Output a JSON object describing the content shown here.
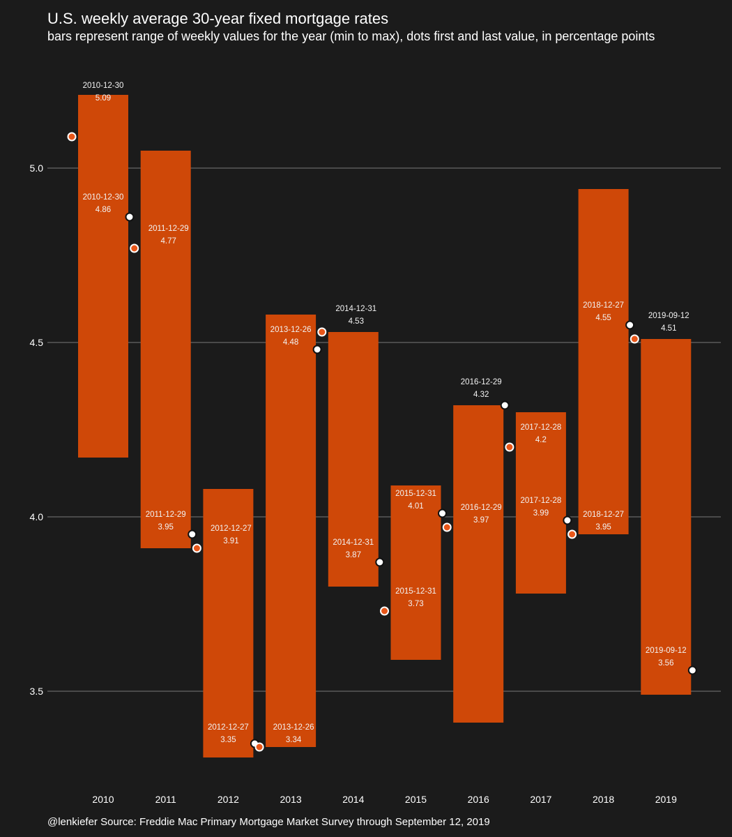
{
  "header": {
    "title": "U.S. weekly average 30-year fixed mortgage rates",
    "subtitle": "bars represent range of weekly values for the year (min to max), dots first and last value, in percentage points"
  },
  "footer": {
    "caption": "@lenkiefer Source: Freddie Mac Primary Mortgage Market Survey through September 12, 2019"
  },
  "colors": {
    "background": "#1b1b1b",
    "bar": "#cf4808",
    "first_dot": "#e8571a",
    "last_dot": "#ffffff",
    "grid": "#5a5a5a",
    "text": "#ffffff"
  },
  "chart_data": {
    "type": "bar",
    "grid": true,
    "ylim": [
      3.2,
      5.4
    ],
    "yticks": [
      "3.5",
      "4.0",
      "4.5",
      "5.0"
    ],
    "categories": [
      "2010",
      "2011",
      "2012",
      "2013",
      "2014",
      "2015",
      "2016",
      "2017",
      "2018",
      "2019"
    ],
    "range_min": [
      4.17,
      3.91,
      3.31,
      3.34,
      3.8,
      3.59,
      3.41,
      3.78,
      3.95,
      3.49
    ],
    "range_max": [
      5.21,
      5.05,
      4.08,
      4.58,
      4.53,
      4.09,
      4.32,
      4.3,
      4.94,
      4.51
    ],
    "first_value": [
      5.09,
      4.77,
      3.91,
      3.34,
      4.53,
      3.73,
      3.97,
      4.2,
      3.95,
      4.51
    ],
    "last_value": [
      4.86,
      3.95,
      3.35,
      4.48,
      3.87,
      4.01,
      4.32,
      3.99,
      4.55,
      3.56
    ],
    "labels": [
      {
        "date": "2010-12-30",
        "value": "5.09"
      },
      {
        "date": "2010-12-30",
        "value": "4.86"
      },
      {
        "date": "2011-12-29",
        "value": "4.77"
      },
      {
        "date": "2011-12-29",
        "value": "3.95"
      },
      {
        "date": "2012-12-27",
        "value": "3.91"
      },
      {
        "date": "2012-12-27",
        "value": "3.35"
      },
      {
        "date": "2013-12-26",
        "value": "4.48"
      },
      {
        "date": "2013-12-26",
        "value": "3.34"
      },
      {
        "date": "2014-12-31",
        "value": "4.53"
      },
      {
        "date": "2014-12-31",
        "value": "3.87"
      },
      {
        "date": "2015-12-31",
        "value": "4.01"
      },
      {
        "date": "2015-12-31",
        "value": "3.73"
      },
      {
        "date": "2016-12-29",
        "value": "4.32"
      },
      {
        "date": "2016-12-29",
        "value": "3.97"
      },
      {
        "date": "2017-12-28",
        "value": "4.2"
      },
      {
        "date": "2017-12-28",
        "value": "3.99"
      },
      {
        "date": "2018-12-27",
        "value": "4.55"
      },
      {
        "date": "2018-12-27",
        "value": "3.95"
      },
      {
        "date": "2019-09-12",
        "value": "4.51"
      },
      {
        "date": "2019-09-12",
        "value": "3.56"
      }
    ]
  }
}
